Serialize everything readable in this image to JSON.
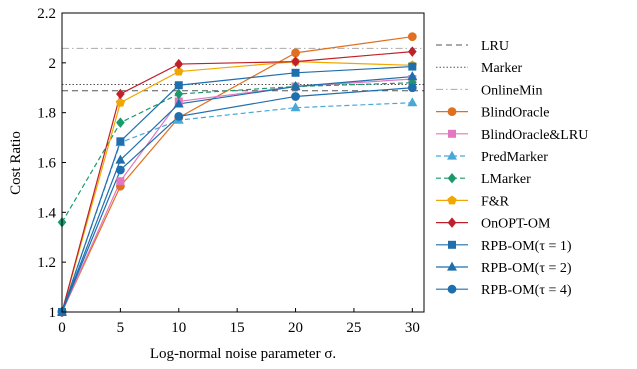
{
  "chart_data": {
    "type": "line",
    "xlabel": "Log-normal noise parameter σ.",
    "ylabel": "Cost Ratio",
    "x": [
      0,
      5,
      10,
      20,
      30
    ],
    "xlim": [
      0,
      31
    ],
    "ylim": [
      1,
      2.2
    ],
    "xticks": [
      "0",
      "5",
      "10",
      "15",
      "20",
      "25",
      "30"
    ],
    "yticks": [
      "1",
      "1.2",
      "1.4",
      "1.6",
      "1.8",
      "2",
      "2.2"
    ],
    "legend_position": "right",
    "grid": false,
    "reference_lines": [
      {
        "name": "LRU",
        "value": 1.888,
        "color": "#555555",
        "style": "dashed"
      },
      {
        "name": "Marker",
        "value": 1.913,
        "color": "#555555",
        "style": "dotted"
      },
      {
        "name": "OnlineMin",
        "value": 2.058,
        "color": "#aaaaaa",
        "style": "dashdot"
      }
    ],
    "series": [
      {
        "name": "BlindOracle",
        "color": "#e07020",
        "marker": "circle",
        "dashed": false,
        "values": [
          1.0,
          1.505,
          1.78,
          2.04,
          2.105
        ]
      },
      {
        "name": "BlindOracle&LRU",
        "color": "#e377c2",
        "marker": "square",
        "dashed": false,
        "values": [
          1.0,
          1.525,
          1.845,
          1.905,
          1.935
        ]
      },
      {
        "name": "PredMarker",
        "color": "#4aa8d8",
        "marker": "triangle",
        "dashed": true,
        "values": [
          1.0,
          1.68,
          1.77,
          1.82,
          1.84
        ]
      },
      {
        "name": "LMarker",
        "color": "#1a9a6a",
        "marker": "diamond",
        "dashed": true,
        "values": [
          1.36,
          1.76,
          1.875,
          1.905,
          1.92
        ]
      },
      {
        "name": "F&R",
        "color": "#f0a800",
        "marker": "pentagon",
        "dashed": false,
        "values": [
          1.0,
          1.84,
          1.965,
          2.005,
          1.99
        ]
      },
      {
        "name": "OnOPT-OM",
        "color": "#c0202a",
        "marker": "diamond",
        "dashed": false,
        "values": [
          1.0,
          1.875,
          1.995,
          2.005,
          2.045
        ]
      },
      {
        "name": "RPB-OM(τ = 1)",
        "color": "#1f6fae",
        "marker": "square",
        "dashed": false,
        "values": [
          1.0,
          1.685,
          1.91,
          1.96,
          1.985
        ]
      },
      {
        "name": "RPB-OM(τ = 2)",
        "color": "#1f6fae",
        "marker": "triangle",
        "dashed": false,
        "values": [
          1.0,
          1.61,
          1.835,
          1.905,
          1.945
        ]
      },
      {
        "name": "RPB-OM(τ = 4)",
        "color": "#1f6fae",
        "marker": "circle",
        "dashed": false,
        "values": [
          1.0,
          1.57,
          1.785,
          1.865,
          1.9
        ]
      }
    ]
  }
}
